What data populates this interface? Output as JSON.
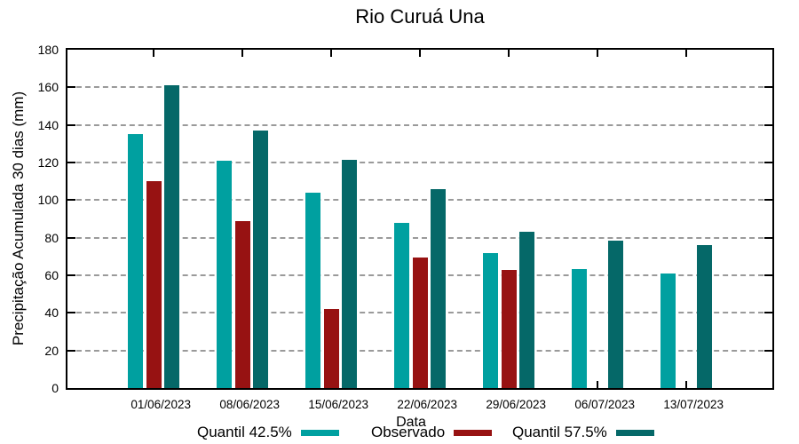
{
  "chart_data": {
    "type": "bar",
    "title": "Rio Curuá Una",
    "xlabel": "Data",
    "ylabel": "Precipitação Acumulada 30 dias (mm)",
    "ylim": [
      0,
      180
    ],
    "ytick_step": 20,
    "grid": true,
    "legend_position": "bottom",
    "categories": [
      "01/06/2023",
      "08/06/2023",
      "15/06/2023",
      "22/06/2023",
      "29/06/2023",
      "06/07/2023",
      "13/07/2023"
    ],
    "series": [
      {
        "name": "Quantil 42.5%",
        "color": "#00a0a0",
        "values": [
          135,
          121,
          104,
          88,
          72,
          63.5,
          61
        ]
      },
      {
        "name": "Observado",
        "color": "#971212",
        "values": [
          110,
          89,
          42,
          69.5,
          63,
          null,
          null
        ]
      },
      {
        "name": "Quantil 57.5%",
        "color": "#056868",
        "values": [
          161,
          137,
          121.5,
          106,
          83,
          78.5,
          76
        ]
      }
    ]
  },
  "colors": {
    "axis": "#000000",
    "grid": "#9a9a9a",
    "background": "#ffffff"
  }
}
